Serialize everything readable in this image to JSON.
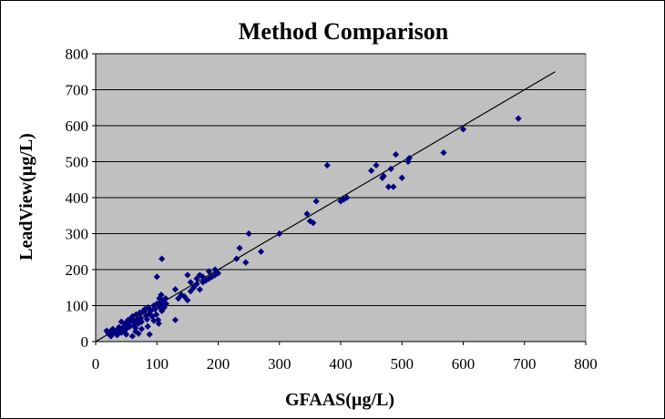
{
  "chart_data": {
    "type": "scatter",
    "title": "Method Comparison",
    "xlabel": "GFAAS(µg/L)",
    "ylabel": "LeadView(µg/L)",
    "xlim": [
      0,
      800
    ],
    "ylim": [
      0,
      800
    ],
    "x_ticks": [
      0,
      100,
      200,
      300,
      400,
      500,
      600,
      700,
      800
    ],
    "y_ticks": [
      0,
      100,
      200,
      300,
      400,
      500,
      600,
      700,
      800
    ],
    "grid": "horizontal",
    "legend": "none",
    "colors": {
      "plot_background": "#c0c0c0",
      "marker": "#000080",
      "line": "#000000"
    },
    "trendline": {
      "x": [
        0,
        750
      ],
      "y": [
        0,
        750
      ]
    },
    "points": [
      [
        20,
        25
      ],
      [
        22,
        20
      ],
      [
        25,
        30
      ],
      [
        27,
        22
      ],
      [
        28,
        35
      ],
      [
        30,
        25
      ],
      [
        32,
        28
      ],
      [
        35,
        32
      ],
      [
        36,
        22
      ],
      [
        38,
        40
      ],
      [
        40,
        30
      ],
      [
        42,
        25
      ],
      [
        44,
        35
      ],
      [
        45,
        40
      ],
      [
        47,
        30
      ],
      [
        48,
        50
      ],
      [
        50,
        45
      ],
      [
        52,
        38
      ],
      [
        53,
        60
      ],
      [
        55,
        52
      ],
      [
        56,
        42
      ],
      [
        58,
        65
      ],
      [
        60,
        70
      ],
      [
        62,
        55
      ],
      [
        63,
        45
      ],
      [
        65,
        38
      ],
      [
        66,
        75
      ],
      [
        68,
        60
      ],
      [
        70,
        50
      ],
      [
        72,
        80
      ],
      [
        74,
        65
      ],
      [
        75,
        55
      ],
      [
        78,
        85
      ],
      [
        80,
        90
      ],
      [
        82,
        72
      ],
      [
        84,
        62
      ],
      [
        86,
        95
      ],
      [
        88,
        78
      ],
      [
        90,
        85
      ],
      [
        92,
        70
      ],
      [
        95,
        100
      ],
      [
        97,
        90
      ],
      [
        99,
        75
      ],
      [
        100,
        105
      ],
      [
        102,
        60
      ],
      [
        103,
        50
      ],
      [
        104,
        120
      ],
      [
        105,
        95
      ],
      [
        106,
        110
      ],
      [
        107,
        130
      ],
      [
        108,
        85
      ],
      [
        109,
        100
      ],
      [
        110,
        115
      ],
      [
        112,
        95
      ],
      [
        114,
        120
      ],
      [
        115,
        105
      ],
      [
        100,
        180
      ],
      [
        108,
        230
      ],
      [
        88,
        20
      ],
      [
        60,
        15
      ],
      [
        42,
        55
      ],
      [
        35,
        18
      ],
      [
        25,
        15
      ],
      [
        18,
        30
      ],
      [
        50,
        20
      ],
      [
        65,
        28
      ],
      [
        75,
        35
      ],
      [
        85,
        42
      ],
      [
        95,
        58
      ],
      [
        70,
        22
      ],
      [
        130,
        60
      ],
      [
        135,
        120
      ],
      [
        140,
        130
      ],
      [
        145,
        125
      ],
      [
        150,
        185
      ],
      [
        155,
        140
      ],
      [
        160,
        150
      ],
      [
        165,
        160
      ],
      [
        170,
        145
      ],
      [
        175,
        165
      ],
      [
        180,
        170
      ],
      [
        185,
        175
      ],
      [
        190,
        180
      ],
      [
        195,
        200
      ],
      [
        200,
        190
      ],
      [
        155,
        165
      ],
      [
        165,
        175
      ],
      [
        175,
        180
      ],
      [
        185,
        195
      ],
      [
        195,
        185
      ],
      [
        130,
        145
      ],
      [
        150,
        115
      ],
      [
        170,
        185
      ],
      [
        230,
        230
      ],
      [
        235,
        260
      ],
      [
        245,
        220
      ],
      [
        250,
        300
      ],
      [
        270,
        250
      ],
      [
        300,
        300
      ],
      [
        345,
        355
      ],
      [
        350,
        335
      ],
      [
        355,
        330
      ],
      [
        360,
        390
      ],
      [
        378,
        490
      ],
      [
        400,
        390
      ],
      [
        405,
        395
      ],
      [
        410,
        400
      ],
      [
        450,
        475
      ],
      [
        458,
        490
      ],
      [
        468,
        455
      ],
      [
        470,
        460
      ],
      [
        478,
        430
      ],
      [
        482,
        480
      ],
      [
        486,
        430
      ],
      [
        490,
        520
      ],
      [
        500,
        455
      ],
      [
        510,
        500
      ],
      [
        512,
        510
      ],
      [
        568,
        525
      ],
      [
        600,
        590
      ],
      [
        690,
        620
      ]
    ]
  }
}
